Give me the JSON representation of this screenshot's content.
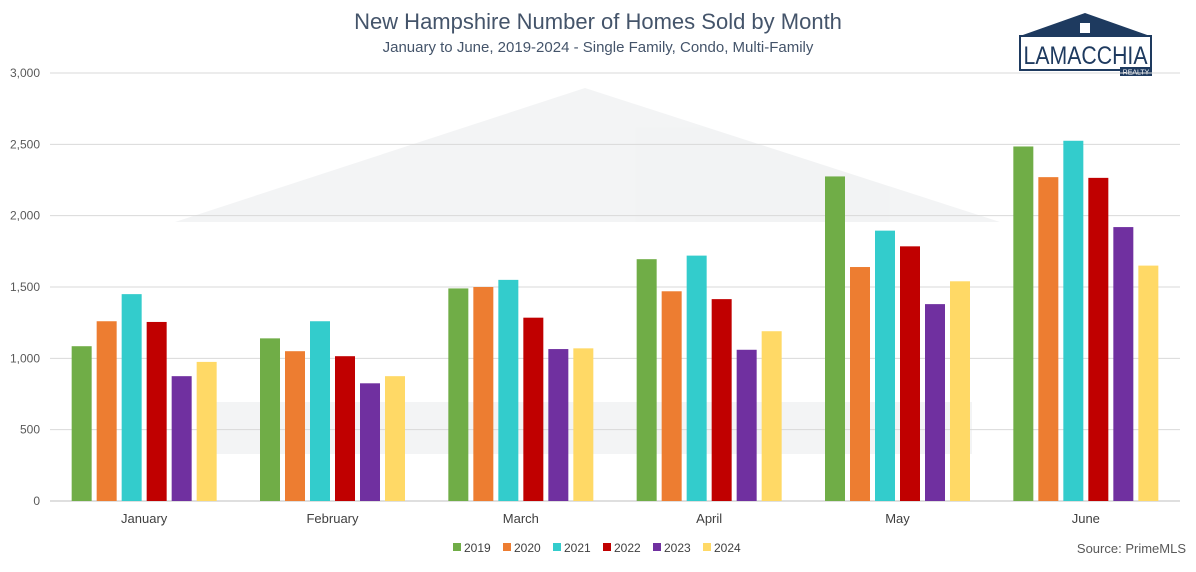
{
  "header": {
    "title": "New Hampshire Number of Homes Sold by Month",
    "subtitle": "January to June, 2019-2024 - Single Family, Condo, Multi-Family"
  },
  "logo": {
    "name": "LAMACCHIA",
    "tagline": "REALTY",
    "color": "#1e3a5f"
  },
  "source": "Source: PrimeMLS",
  "chart_data": {
    "type": "bar",
    "title": "New Hampshire Number of Homes Sold by Month",
    "subtitle": "January to June, 2019-2024 - Single Family, Condo, Multi-Family",
    "xlabel": "",
    "ylabel": "",
    "ylim": [
      0,
      3000
    ],
    "yticks": [
      0,
      500,
      1000,
      1500,
      2000,
      2500,
      3000
    ],
    "ytick_labels": [
      "0",
      "500",
      "1,000",
      "1,500",
      "2,000",
      "2,500",
      "3,000"
    ],
    "grid": true,
    "legend_position": "bottom",
    "categories": [
      "January",
      "February",
      "March",
      "April",
      "May",
      "June"
    ],
    "series": [
      {
        "name": "2019",
        "color": "#70ad47",
        "values": [
          1085,
          1140,
          1490,
          1695,
          2275,
          2485
        ]
      },
      {
        "name": "2020",
        "color": "#ed7d31",
        "values": [
          1260,
          1050,
          1500,
          1470,
          1640,
          2270
        ]
      },
      {
        "name": "2021",
        "color": "#33cccc",
        "values": [
          1450,
          1260,
          1550,
          1720,
          1895,
          2525
        ]
      },
      {
        "name": "2022",
        "color": "#c00000",
        "values": [
          1255,
          1015,
          1285,
          1415,
          1785,
          2265
        ]
      },
      {
        "name": "2023",
        "color": "#7030a0",
        "values": [
          875,
          825,
          1065,
          1060,
          1380,
          1920
        ]
      },
      {
        "name": "2024",
        "color": "#ffd966",
        "values": [
          975,
          875,
          1070,
          1190,
          1540,
          1650
        ]
      }
    ]
  }
}
